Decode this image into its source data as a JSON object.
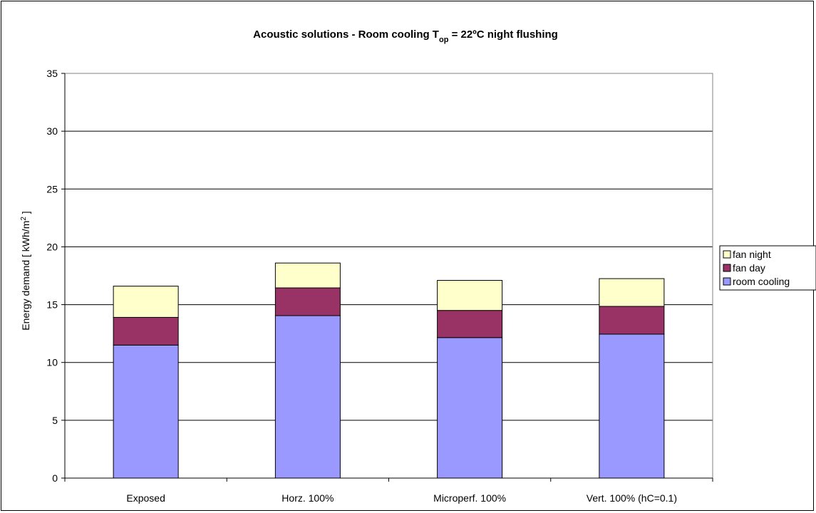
{
  "chart_data": {
    "type": "bar",
    "stacked": true,
    "title": {
      "prefix": "Acoustic solutions - Room cooling T",
      "subscript": "op",
      "suffix": " = 22ºC night flushing"
    },
    "ylabel": {
      "prefix": "Energy demand [ kWh/m",
      "superscript": "2",
      "suffix": " ]"
    },
    "xlabel": "",
    "ylim": [
      0,
      35
    ],
    "yticks": [
      0,
      5,
      10,
      15,
      20,
      25,
      30,
      35
    ],
    "grid": true,
    "legend_position": "right",
    "categories": [
      "Exposed",
      "Horz. 100%",
      "Microperf. 100%",
      "Vert. 100% (hC=0.1)"
    ],
    "series": [
      {
        "name": "room cooling",
        "color": "#9999ff",
        "values": [
          11.5,
          14.05,
          12.15,
          12.45
        ]
      },
      {
        "name": "fan day",
        "color": "#993366",
        "values": [
          2.4,
          2.4,
          2.35,
          2.4
        ]
      },
      {
        "name": "fan night",
        "color": "#ffffcc",
        "values": [
          2.7,
          2.15,
          2.6,
          2.4
        ]
      }
    ],
    "legend_order": [
      "fan night",
      "fan day",
      "room cooling"
    ]
  }
}
